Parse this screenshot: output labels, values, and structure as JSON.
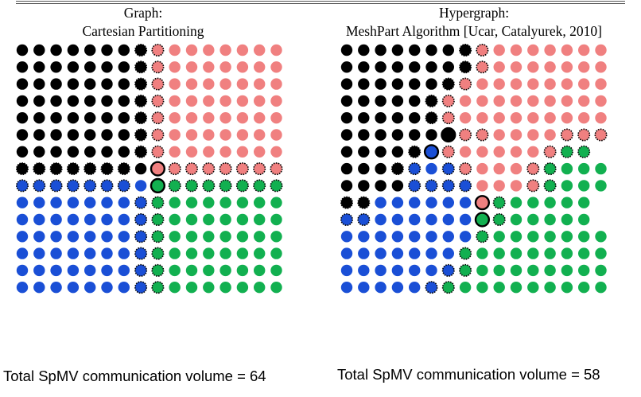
{
  "colors": {
    "black": "#000000",
    "red": "#f08080",
    "blue": "#1a4fd6",
    "green": "#12b050"
  },
  "legend_codes": "k=black, r=red, b=blue, g=green; uppercase = dotted boundary outline; * = large bold-outlined node",
  "left": {
    "title_line1": "Graph:",
    "title_line2": "Cartesian Partitioning",
    "footer": "Total SpMV communication volume = 64",
    "rows": [
      "kkkkkkkKRrrrrrrr",
      "kkkkkkkKRrrrrrrr",
      "kkkkkkkKRrrrrrrr",
      "kkkkkkkKRrrrrrrr",
      "kkkkkkkKRrrrrrrr",
      "kkkkkkkKRrrrrrrr",
      "kkkkkkkKRrrrrrrr",
      "KKKKKKKk*r*RRRRRRR",
      "BBBBBBBb*g*GGGGGGG",
      "bbbbbbbBGggggggg",
      "bbbbbbbBGggggggg",
      "bbbbbbbBGggggggg",
      "bbbbbbbBGggggggg",
      "bbbbbbbBGggggggg",
      "bbbbbbbBGggggggg"
    ]
  },
  "right": {
    "title_line1": "Hypergraph:",
    "title_line2": "MeshPart Algorithm [Ucar, Catalyurek, 2010]",
    "footer": "Total SpMV communication volume = 58",
    "rows": [
      "kkkkkkkKRrrrrrrr",
      "kkkkkkkKRrrrrrrr",
      "kkkkkkKRrrrrrrrr",
      "kkkkkKRrrrrrrrrr",
      "kkkkkKRrrrrrrrrr",
      "kkkkkk*k*RRrrrrRRR",
      "kkkkK*b*RrrrrrRGG",
      "kkkKBbBRrrrRGggg",
      "kkkkBBBBrrrRGggg",
      "KKbbbbbb*r*Gggggg",
      "BBbbbbbb*g*Gggggg",
      "bbbbbbbbGggggggg",
      "bbbbbbbGgggggggg",
      "bbbbbbBGgggggggg",
      "bbbbbBGggggggggg"
    ]
  }
}
